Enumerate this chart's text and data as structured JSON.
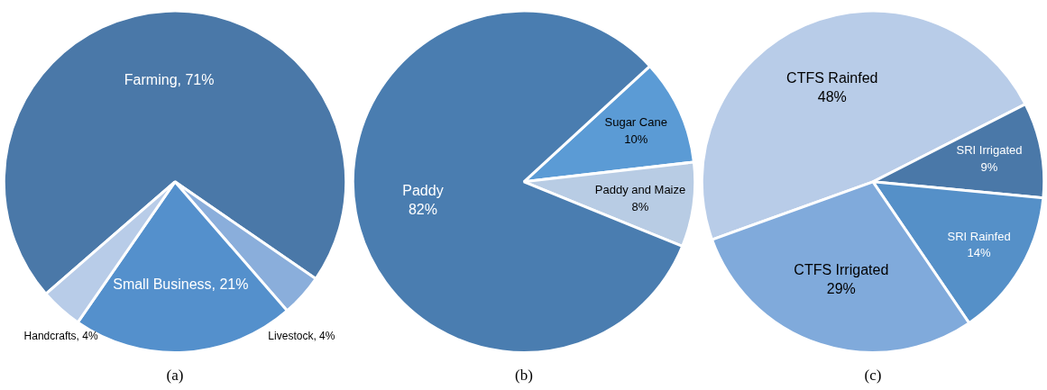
{
  "chart_data": [
    {
      "type": "pie",
      "title": "(a)",
      "categories": [
        "Farming",
        "Livestock",
        "Small Business",
        "Handcrafts"
      ],
      "values": [
        71,
        4,
        21,
        4
      ],
      "colors": [
        "#4a78a8",
        "#8aaedb",
        "#5490cc",
        "#b8cce8"
      ],
      "value_labels": [
        "71%",
        "4%",
        "21%",
        "4%"
      ]
    },
    {
      "type": "pie",
      "title": "(b)",
      "categories": [
        "Sugar Cane",
        "Paddy and Maize",
        "Paddy"
      ],
      "values": [
        10,
        8,
        82
      ],
      "colors": [
        "#5b9bd5",
        "#b8cce4",
        "#4a7db0"
      ],
      "value_labels": [
        "10%",
        "8%",
        "82%"
      ]
    },
    {
      "type": "pie",
      "title": "(c)",
      "categories": [
        "CTFS Rainfed",
        "SRI Irrigated",
        "SRI Rainfed",
        "CTFS Irrigated"
      ],
      "values": [
        48,
        9,
        14,
        29
      ],
      "colors": [
        "#b8cce8",
        "#4a78a8",
        "#5590c8",
        "#80aadb"
      ],
      "value_labels": [
        "48%",
        "9%",
        "14%",
        "29%"
      ]
    }
  ]
}
